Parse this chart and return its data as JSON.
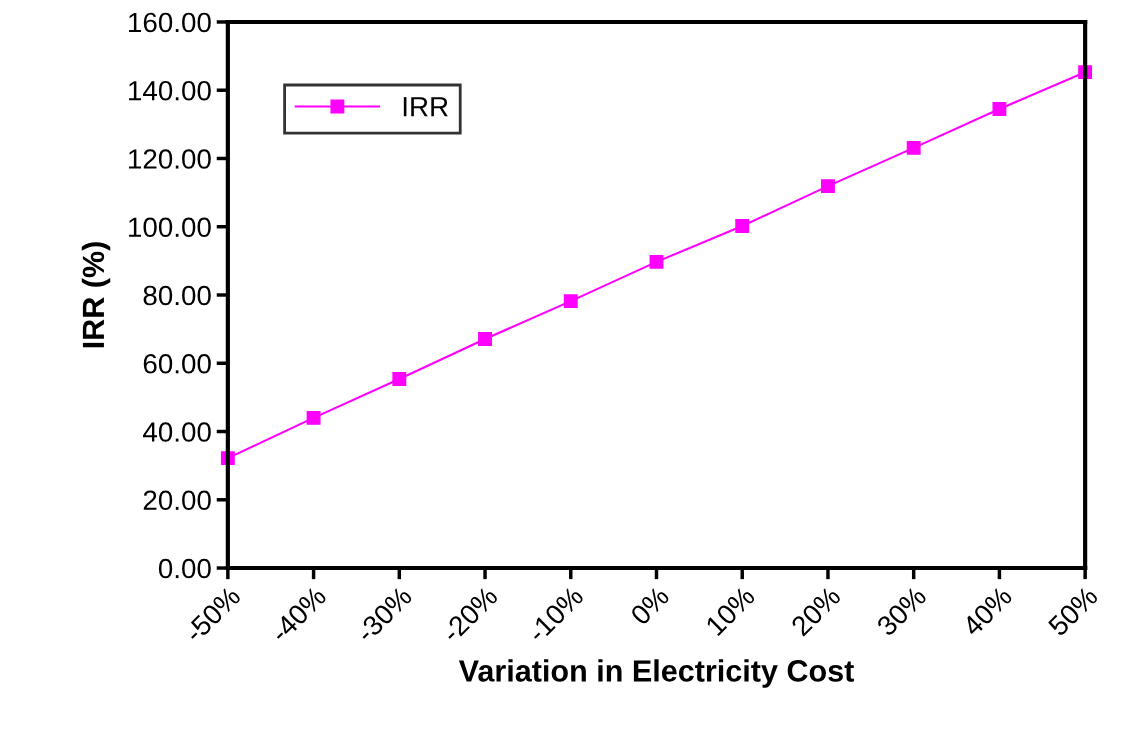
{
  "chart_data": {
    "type": "line",
    "xlabel": "Variation in Electricity Cost",
    "ylabel": "IRR (%)",
    "categories": [
      "-50%",
      "-40%",
      "-30%",
      "-20%",
      "-10%",
      "0%",
      "10%",
      "20%",
      "30%",
      "40%",
      "50%"
    ],
    "series": [
      {
        "name": "IRR",
        "color": "#ff00ff",
        "values": [
          32.2,
          44.0,
          55.4,
          67.1,
          78.2,
          89.7,
          100.2,
          111.9,
          123.1,
          134.5,
          145.3
        ]
      }
    ],
    "ylim": [
      0,
      160
    ],
    "yticks": [
      {
        "value": 0,
        "label": "0.00"
      },
      {
        "value": 20,
        "label": "20.00"
      },
      {
        "value": 40,
        "label": "40.00"
      },
      {
        "value": 60,
        "label": "60.00"
      },
      {
        "value": 80,
        "label": "80.00"
      },
      {
        "value": 100,
        "label": "100.00"
      },
      {
        "value": 120,
        "label": "120.00"
      },
      {
        "value": 140,
        "label": "140.00"
      },
      {
        "value": 160,
        "label": "160.00"
      }
    ],
    "grid": false,
    "legend": "top left",
    "marker": "square",
    "line_style": "solid"
  }
}
